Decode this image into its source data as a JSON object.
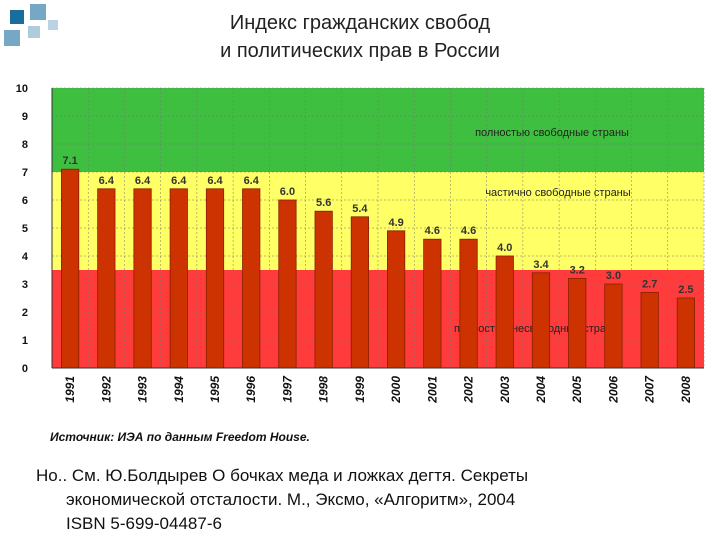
{
  "title_line1": "Индекс гражданских свобод",
  "title_line2": "и политических прав в России",
  "source": "Источник: ИЭА по данным Freedom House.",
  "reference_line1": "Но.. См. Ю.Болдырев О бочках меда и ложках дегтя. Секреты",
  "reference_line2": "экономической отсталости. М., Эксмо, «Алгоритм», 2004",
  "reference_line3": "ISBN 5-699-04487-6",
  "colors": {
    "free_band": "#3fbf3f",
    "partly_free_band": "#ffff66",
    "not_free_band": "#ff3b3b",
    "bar_fill": "#cc3300",
    "decor_square": "#1a6e9e"
  },
  "chart_data": {
    "type": "bar",
    "ylim": [
      0,
      10
    ],
    "yticks": [
      "0",
      "1",
      "2",
      "3",
      "4",
      "5",
      "6",
      "7",
      "8",
      "9",
      "10"
    ],
    "categories": [
      "1991",
      "1992",
      "1993",
      "1994",
      "1995",
      "1996",
      "1997",
      "1998",
      "1999",
      "2000",
      "2001",
      "2002",
      "2003",
      "2004",
      "2005",
      "2006",
      "2007",
      "2008"
    ],
    "values": [
      7.1,
      6.4,
      6.4,
      6.4,
      6.4,
      6.4,
      6.0,
      5.6,
      5.4,
      4.9,
      4.6,
      4.6,
      4.0,
      3.4,
      3.2,
      3.0,
      2.7,
      2.5
    ],
    "value_labels": [
      "7.1",
      "6.4",
      "6.4",
      "6.4",
      "6.4",
      "6.4",
      "6.0",
      "5.6",
      "5.4",
      "4.9",
      "4.6",
      "4.6",
      "4.0",
      "3.4",
      "3.2",
      "3.0",
      "2.7",
      "2.5"
    ],
    "bands": [
      {
        "from": 7,
        "to": 10,
        "label": "полностью свободные страны",
        "color_key": "free_band"
      },
      {
        "from": 3.5,
        "to": 7,
        "label": "частично свободные страны",
        "color_key": "partly_free_band"
      },
      {
        "from": 0,
        "to": 3.5,
        "label": "полностью несвободные страны",
        "color_key": "not_free_band"
      }
    ]
  }
}
